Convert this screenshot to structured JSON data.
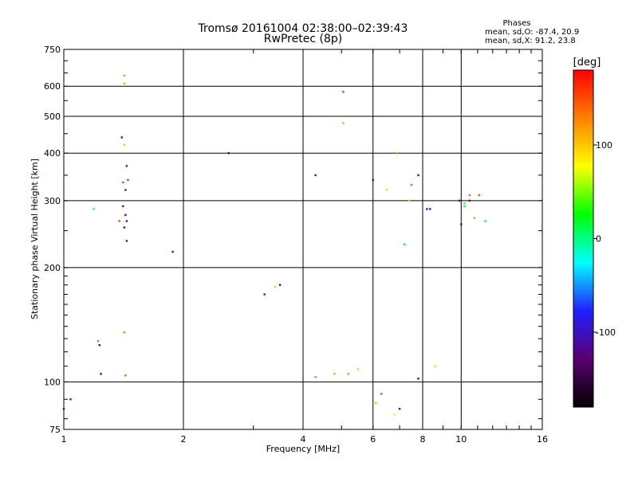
{
  "chart_data": {
    "type": "scatter",
    "title": "Tromsø 20161004 02:38:00–02:39:43",
    "subtitle": "RwPretec (8p)",
    "xlabel": "Frequency [MHz]",
    "ylabel": "Stationary phase Virtual Height [km]",
    "xscale": "log",
    "yscale": "log",
    "xlim": [
      1,
      16
    ],
    "ylim": [
      75,
      750
    ],
    "xticks": [
      1,
      2,
      4,
      6,
      8,
      10,
      16
    ],
    "yticks": [
      75,
      100,
      200,
      300,
      400,
      500,
      600,
      750
    ],
    "grid": true,
    "legend": {
      "heading": "Phases",
      "lines": [
        "mean, sd,O: -87.4, 20.9",
        "mean, sd,X:  91.2, 23.8"
      ]
    },
    "colorbar": {
      "label": "[deg]",
      "range": [
        -180,
        180
      ],
      "ticks": [
        100,
        0,
        -100
      ],
      "colors": [
        "#000000",
        "#5a0070",
        "#2020ff",
        "#00ffff",
        "#00ff00",
        "#ffff00",
        "#ff8000",
        "#ff0000"
      ]
    },
    "points": [
      [
        1.0,
        85,
        -120
      ],
      [
        1.04,
        90,
        -95
      ],
      [
        1.19,
        285,
        -10
      ],
      [
        1.22,
        128,
        140
      ],
      [
        1.24,
        105,
        -110
      ],
      [
        1.23,
        125,
        -120
      ],
      [
        1.38,
        265,
        150
      ],
      [
        1.42,
        640,
        120
      ],
      [
        1.42,
        610,
        115
      ],
      [
        1.4,
        440,
        -110
      ],
      [
        1.42,
        420,
        100
      ],
      [
        1.44,
        370,
        -100
      ],
      [
        1.41,
        335,
        150
      ],
      [
        1.45,
        340,
        160
      ],
      [
        1.43,
        320,
        -95
      ],
      [
        1.41,
        290,
        -100
      ],
      [
        1.43,
        275,
        -110
      ],
      [
        1.44,
        265,
        -100
      ],
      [
        1.42,
        255,
        -115
      ],
      [
        1.44,
        235,
        -100
      ],
      [
        1.42,
        135,
        130
      ],
      [
        1.43,
        104,
        140
      ],
      [
        1.88,
        220,
        -110
      ],
      [
        2.6,
        400,
        -130
      ],
      [
        5.05,
        580,
        160
      ],
      [
        5.05,
        480,
        40
      ],
      [
        6.9,
        400,
        120
      ],
      [
        6.5,
        320,
        60
      ],
      [
        7.5,
        330,
        140
      ],
      [
        7.8,
        350,
        -110
      ],
      [
        7.4,
        300,
        100
      ],
      [
        7.2,
        230,
        20
      ],
      [
        8.2,
        285,
        -100
      ],
      [
        8.35,
        285,
        -95
      ],
      [
        9.9,
        300,
        -100
      ],
      [
        10.2,
        295,
        40
      ],
      [
        10.2,
        290,
        10
      ],
      [
        10.5,
        300,
        -120
      ],
      [
        10.5,
        310,
        140
      ],
      [
        11.1,
        310,
        150
      ],
      [
        10.8,
        270,
        120
      ],
      [
        11.5,
        265,
        10
      ],
      [
        10.0,
        260,
        -110
      ],
      [
        6.0,
        340,
        -110
      ],
      [
        4.3,
        350,
        -100
      ],
      [
        4.8,
        105,
        110
      ],
      [
        5.2,
        105,
        120
      ],
      [
        4.3,
        103,
        130
      ],
      [
        6.1,
        88,
        110
      ],
      [
        6.8,
        82,
        80
      ],
      [
        7.0,
        85,
        -110
      ],
      [
        6.3,
        93,
        150
      ],
      [
        8.6,
        110,
        60
      ],
      [
        7.8,
        102,
        -120
      ],
      [
        5.5,
        108,
        100
      ],
      [
        3.2,
        170,
        -100
      ],
      [
        3.4,
        178,
        100
      ],
      [
        3.5,
        180,
        -110
      ]
    ]
  }
}
